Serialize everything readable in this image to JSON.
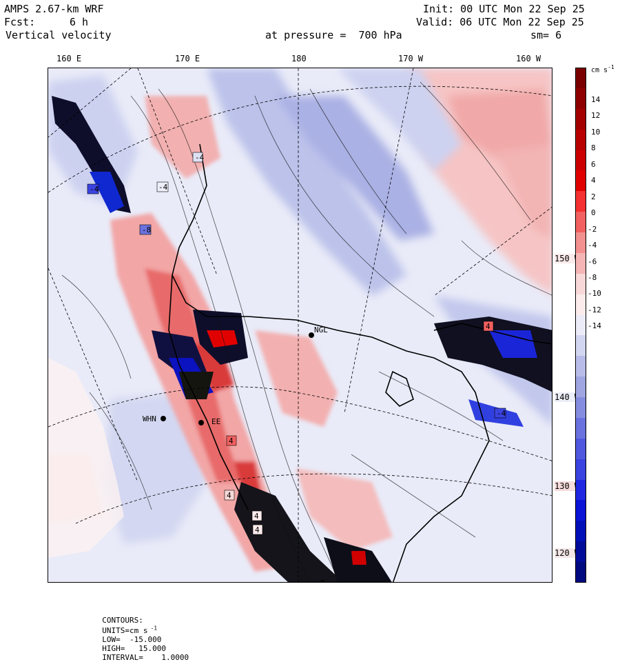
{
  "header": {
    "model": "AMPS 2.67-km WRF",
    "init": "Init: 00 UTC Mon 22 Sep 25",
    "fcst_label": "Fcst:",
    "fcst_value": "6 h",
    "valid": "Valid: 06 UTC Mon 22 Sep 25",
    "field": "Vertical velocity",
    "pressure": "at pressure =  700 hPa",
    "smooth": "sm= 6"
  },
  "top_labels": [
    "160 E",
    "170 E",
    "180",
    "170 W",
    "160 W"
  ],
  "right_labels": [
    "150 W",
    "140 W",
    "130 W",
    "120 W"
  ],
  "stations": [
    "NGL",
    "WHN",
    "EE"
  ],
  "contour_labels": [
    "-4",
    "-4",
    "-4",
    "-8",
    "4",
    "4",
    "4",
    "-4",
    "4",
    "4"
  ],
  "colorbar": {
    "units_label": "cm s",
    "units_exp": "-1",
    "ticks": [
      "14",
      "12",
      "10",
      "8",
      "6",
      "4",
      "2",
      "0",
      "-2",
      "-4",
      "-6",
      "-8",
      "-10",
      "-12",
      "-14"
    ],
    "colors": [
      "#7a0000",
      "#8e0000",
      "#a30000",
      "#b80000",
      "#cc0000",
      "#e00000",
      "#f53030",
      "#f26060",
      "#f39090",
      "#f5b5b5",
      "#f8d8d8",
      "#fcecec",
      "#ebecf8",
      "#d2d6f0",
      "#b7bde8",
      "#9ea5e0",
      "#858de0",
      "#6a72df",
      "#4f58de",
      "#3a43e0",
      "#1f28e0",
      "#0a14d6",
      "#0010b8",
      "#000c99",
      "#000a80"
    ]
  },
  "footer": {
    "contours": "CONTOURS:",
    "units": "UNITS=cm s",
    "units_exp": "-1",
    "low": "LOW=  -15.000",
    "high": "HIGH=   15.000",
    "interval": "INTERVAL=    1.0000"
  }
}
